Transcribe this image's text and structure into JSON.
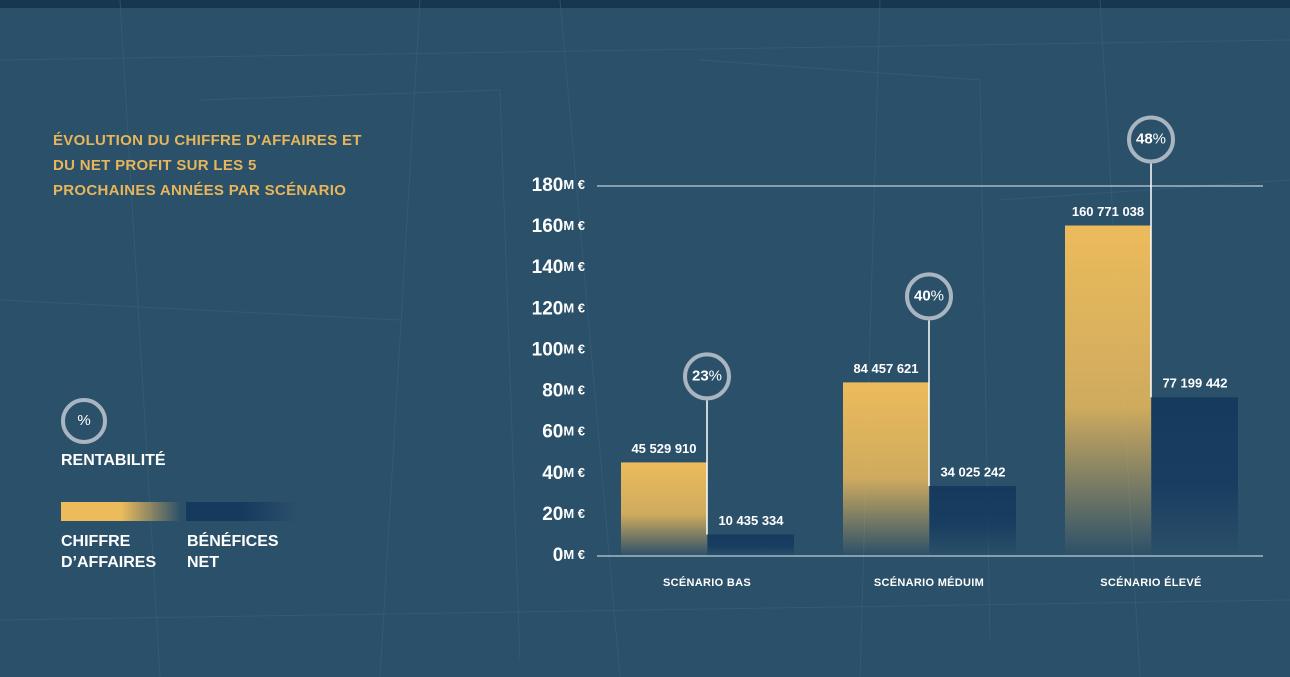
{
  "chart_data": {
    "type": "bar",
    "title": "ÉVOLUTION DU CHIFFRE D'AFFAIRES ET DU NET PROFIT SUR LES 5 PROCHAINES ANNÉES PAR SCÉNARIO",
    "categories": [
      "SCÉNARIO BAS",
      "SCÉNARIO MÉDUIM",
      "SCÉNARIO ÉLEVÉ"
    ],
    "series": [
      {
        "name": "CHIFFRE D’AFFAIRES",
        "color": "#ecbb5c",
        "values": [
          45529910,
          84457621,
          160771038
        ],
        "value_labels": [
          "45 529 910",
          "84 457 621",
          "160 771 038"
        ]
      },
      {
        "name": "BÉNÉFICES NET",
        "color": "#163a5e",
        "values": [
          10435334,
          34025242,
          77199442
        ],
        "value_labels": [
          "10 435 334",
          "34 025 242",
          "77 199 442"
        ]
      }
    ],
    "profitability": {
      "name": "RENTABILITÉ",
      "symbol": "%",
      "values": [
        23,
        40,
        48
      ],
      "value_labels": [
        "23%",
        "40%",
        "48%"
      ]
    },
    "ylim": [
      0,
      180000000
    ],
    "yticks": [
      {
        "value": 0,
        "label": "0M €"
      },
      {
        "value": 20000000,
        "label": "20M €"
      },
      {
        "value": 40000000,
        "label": "40M €"
      },
      {
        "value": 60000000,
        "label": "60M €"
      },
      {
        "value": 80000000,
        "label": "80M €"
      },
      {
        "value": 100000000,
        "label": "100M €"
      },
      {
        "value": 120000000,
        "label": "120M €"
      },
      {
        "value": 140000000,
        "label": "140M €"
      },
      {
        "value": 160000000,
        "label": "160M €"
      },
      {
        "value": 180000000,
        "label": "180M €"
      }
    ]
  }
}
